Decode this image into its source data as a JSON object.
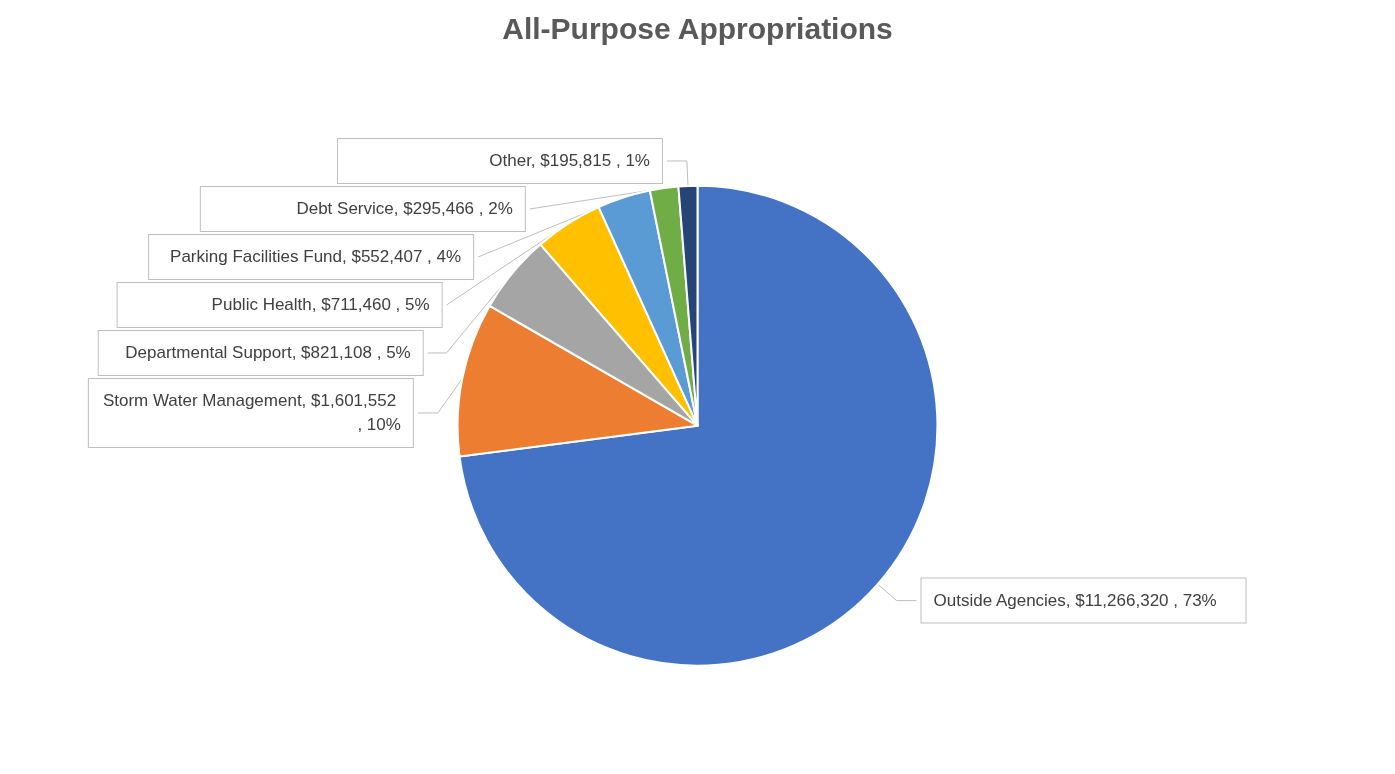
{
  "chart_data": {
    "type": "pie",
    "title": "All-Purpose Appropriations",
    "categories": [
      "Outside Agencies",
      "Storm Water Management",
      "Departmental Support",
      "Public Health",
      "Parking Facilities Fund",
      "Debt Service",
      "Other"
    ],
    "values": [
      11266320,
      1601552,
      821108,
      711460,
      552407,
      295466,
      195815
    ],
    "colors": [
      "#4472c4",
      "#ed7d31",
      "#a5a5a5",
      "#ffc000",
      "#5b9bd5",
      "#70ad47",
      "#264478"
    ],
    "value_labels": [
      "$11,266,320 , 73%",
      "$1,601,552 , 10%",
      "$821,108 , 5%",
      "$711,460 , 5%",
      "$552,407 , 4%",
      "$295,466 , 2%",
      "$195,815 , 1%"
    ],
    "legend": false
  }
}
